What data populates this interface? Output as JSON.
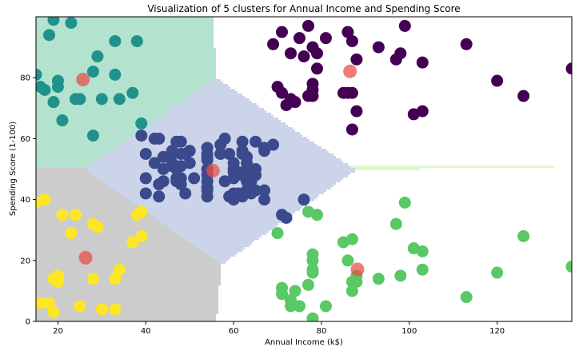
{
  "chart_data": {
    "type": "scatter",
    "title": "Visualization of 5 clusters for Annual Income and Spending Score",
    "xlabel": "Annual Income (k$)",
    "ylabel": "Spending Score (1-100)",
    "xlim": [
      15,
      137
    ],
    "ylim": [
      0,
      100
    ],
    "xticks": [
      "20",
      "40",
      "60",
      "80",
      "100",
      "120"
    ],
    "yticks": [
      "0",
      "20",
      "40",
      "60",
      "80"
    ],
    "xtick_values": [
      20,
      40,
      60,
      80,
      100,
      120
    ],
    "ytick_values": [
      0,
      20,
      40,
      60,
      80
    ],
    "grid": false,
    "legend": "none",
    "region_colors": [
      "#e0f8c8",
      "#b3e3cf",
      "#ccd4e9",
      "#cccccc",
      "#f0e3c8"
    ],
    "centroid_color": "#e8504a",
    "series": [
      {
        "color": "#440154",
        "points": [
          [
            69,
            91
          ],
          [
            70,
            77
          ],
          [
            71,
            95
          ],
          [
            71,
            75
          ],
          [
            72,
            71
          ],
          [
            73,
            88
          ],
          [
            73,
            73
          ],
          [
            74,
            72
          ],
          [
            75,
            93
          ],
          [
            76,
            87
          ],
          [
            77,
            97
          ],
          [
            77,
            74
          ],
          [
            78,
            90
          ],
          [
            78,
            78
          ],
          [
            78,
            76
          ],
          [
            78,
            74
          ],
          [
            79,
            88
          ],
          [
            79,
            83
          ],
          [
            81,
            93
          ],
          [
            85,
            75
          ],
          [
            86,
            95
          ],
          [
            86,
            75
          ],
          [
            87,
            92
          ],
          [
            87,
            75
          ],
          [
            87,
            63
          ],
          [
            88,
            86
          ],
          [
            88,
            69
          ],
          [
            93,
            90
          ],
          [
            97,
            86
          ],
          [
            98,
            88
          ],
          [
            99,
            97
          ],
          [
            101,
            68
          ],
          [
            103,
            85
          ],
          [
            103,
            69
          ],
          [
            113,
            91
          ],
          [
            120,
            79
          ],
          [
            126,
            74
          ],
          [
            137,
            83
          ]
        ]
      },
      {
        "color": "#21918c",
        "points": [
          [
            15,
            81
          ],
          [
            16,
            77
          ],
          [
            17,
            76
          ],
          [
            18,
            94
          ],
          [
            19,
            72
          ],
          [
            19,
            99
          ],
          [
            20,
            77
          ],
          [
            20,
            79
          ],
          [
            21,
            66
          ],
          [
            23,
            98
          ],
          [
            24,
            73
          ],
          [
            25,
            73
          ],
          [
            28,
            82
          ],
          [
            28,
            61
          ],
          [
            29,
            87
          ],
          [
            30,
            73
          ],
          [
            33,
            92
          ],
          [
            33,
            81
          ],
          [
            34,
            73
          ],
          [
            37,
            75
          ],
          [
            38,
            92
          ],
          [
            39,
            65
          ]
        ]
      },
      {
        "color": "#3b4a8c",
        "points": [
          [
            39,
            61
          ],
          [
            40,
            55
          ],
          [
            40,
            47
          ],
          [
            40,
            42
          ],
          [
            42,
            52
          ],
          [
            42,
            60
          ],
          [
            43,
            60
          ],
          [
            43,
            45
          ],
          [
            43,
            41
          ],
          [
            44,
            50
          ],
          [
            44,
            46
          ],
          [
            44,
            54
          ],
          [
            46,
            51
          ],
          [
            46,
            56
          ],
          [
            46,
            55
          ],
          [
            46,
            52
          ],
          [
            47,
            46
          ],
          [
            47,
            50
          ],
          [
            47,
            59
          ],
          [
            47,
            47
          ],
          [
            48,
            51
          ],
          [
            48,
            55
          ],
          [
            48,
            45
          ],
          [
            48,
            59
          ],
          [
            48,
            47
          ],
          [
            49,
            42
          ],
          [
            49,
            55
          ],
          [
            50,
            56
          ],
          [
            50,
            52
          ],
          [
            51,
            47
          ],
          [
            54,
            46
          ],
          [
            54,
            53
          ],
          [
            54,
            55
          ],
          [
            54,
            57
          ],
          [
            54,
            43
          ],
          [
            54,
            48
          ],
          [
            54,
            54
          ],
          [
            54,
            50
          ],
          [
            54,
            41
          ],
          [
            54,
            44
          ],
          [
            57,
            58
          ],
          [
            57,
            55
          ],
          [
            58,
            60
          ],
          [
            58,
            46
          ],
          [
            59,
            55
          ],
          [
            59,
            41
          ],
          [
            60,
            49
          ],
          [
            60,
            40
          ],
          [
            60,
            42
          ],
          [
            60,
            52
          ],
          [
            60,
            47
          ],
          [
            60,
            50
          ],
          [
            61,
            42
          ],
          [
            61,
            49
          ],
          [
            62,
            41
          ],
          [
            62,
            48
          ],
          [
            62,
            59
          ],
          [
            62,
            55
          ],
          [
            62,
            56
          ],
          [
            62,
            42
          ],
          [
            63,
            50
          ],
          [
            63,
            46
          ],
          [
            63,
            43
          ],
          [
            63,
            48
          ],
          [
            63,
            52
          ],
          [
            63,
            54
          ],
          [
            64,
            42
          ],
          [
            64,
            46
          ],
          [
            65,
            48
          ],
          [
            65,
            50
          ],
          [
            65,
            43
          ],
          [
            65,
            59
          ],
          [
            67,
            43
          ],
          [
            67,
            57
          ],
          [
            67,
            56
          ],
          [
            67,
            40
          ],
          [
            69,
            58
          ],
          [
            71,
            35
          ],
          [
            72,
            34
          ],
          [
            76,
            40
          ]
        ]
      },
      {
        "color": "#fde725",
        "points": [
          [
            15,
            39
          ],
          [
            16,
            6
          ],
          [
            17,
            40
          ],
          [
            18,
            6
          ],
          [
            19,
            3
          ],
          [
            19,
            14
          ],
          [
            20,
            15
          ],
          [
            20,
            13
          ],
          [
            21,
            35
          ],
          [
            23,
            29
          ],
          [
            24,
            35
          ],
          [
            25,
            5
          ],
          [
            28,
            32
          ],
          [
            28,
            14
          ],
          [
            29,
            31
          ],
          [
            30,
            4
          ],
          [
            33,
            4
          ],
          [
            33,
            14
          ],
          [
            34,
            17
          ],
          [
            37,
            26
          ],
          [
            38,
            35
          ],
          [
            39,
            36
          ],
          [
            39,
            28
          ]
        ]
      },
      {
        "color": "#5ac864",
        "points": [
          [
            70,
            29
          ],
          [
            71,
            11
          ],
          [
            71,
            9
          ],
          [
            73,
            5
          ],
          [
            73,
            7
          ],
          [
            74,
            10
          ],
          [
            75,
            5
          ],
          [
            77,
            12
          ],
          [
            77,
            36
          ],
          [
            78,
            22
          ],
          [
            78,
            17
          ],
          [
            78,
            20
          ],
          [
            78,
            16
          ],
          [
            78,
            1
          ],
          [
            79,
            35
          ],
          [
            81,
            5
          ],
          [
            85,
            26
          ],
          [
            86,
            20
          ],
          [
            87,
            27
          ],
          [
            87,
            13
          ],
          [
            87,
            10
          ],
          [
            88,
            13
          ],
          [
            88,
            15
          ],
          [
            93,
            14
          ],
          [
            97,
            32
          ],
          [
            98,
            15
          ],
          [
            99,
            39
          ],
          [
            101,
            24
          ],
          [
            103,
            17
          ],
          [
            103,
            23
          ],
          [
            113,
            8
          ],
          [
            120,
            16
          ],
          [
            126,
            28
          ],
          [
            137,
            18
          ]
        ]
      }
    ],
    "centroids": [
      [
        86.5,
        82.1
      ],
      [
        25.7,
        79.4
      ],
      [
        55.3,
        49.5
      ],
      [
        26.3,
        20.9
      ],
      [
        88.2,
        17.1
      ]
    ]
  }
}
